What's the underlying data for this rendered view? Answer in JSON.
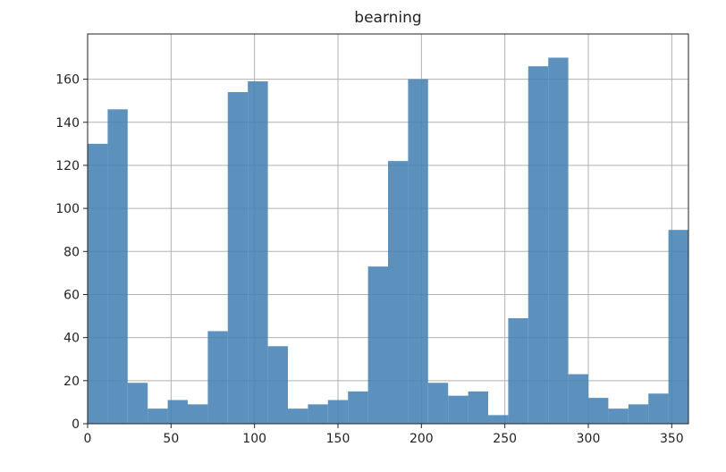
{
  "chart_data": {
    "type": "histogram",
    "title": "bearning",
    "bins": [
      0,
      12,
      24,
      36,
      48,
      60,
      72,
      84,
      96,
      108,
      120,
      132,
      144,
      156,
      168,
      180,
      192,
      204,
      216,
      228,
      240,
      252,
      264,
      276,
      288,
      300,
      312,
      324,
      336,
      348,
      360
    ],
    "values": [
      130,
      146,
      19,
      7,
      11,
      9,
      43,
      154,
      159,
      36,
      7,
      9,
      11,
      15,
      73,
      122,
      160,
      19,
      13,
      15,
      4,
      49,
      166,
      170,
      23,
      12,
      7,
      9,
      14,
      90
    ],
    "color": "#4682b4",
    "xlim": [
      0,
      360
    ],
    "xticks": [
      0,
      50,
      100,
      150,
      200,
      250,
      300,
      350
    ],
    "ylim": [
      0,
      181
    ],
    "yticks": [
      0,
      20,
      40,
      60,
      80,
      100,
      120,
      140,
      160
    ],
    "grid": true
  }
}
